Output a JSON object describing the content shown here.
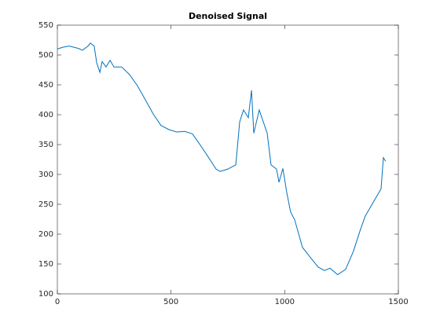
{
  "chart_data": {
    "type": "line",
    "title": "Denoised Signal",
    "x": [
      0,
      24,
      52,
      93,
      110,
      135,
      145,
      162,
      173,
      187,
      197,
      214,
      232,
      249,
      283,
      318,
      353,
      387,
      422,
      456,
      491,
      525,
      560,
      594,
      629,
      664,
      698,
      716,
      750,
      785,
      802,
      819,
      840,
      854,
      864,
      888,
      923,
      940,
      964,
      975,
      992,
      1009,
      1026,
      1044,
      1078,
      1113,
      1147,
      1175,
      1199,
      1233,
      1268,
      1302,
      1330,
      1354,
      1389,
      1424,
      1434,
      1444
    ],
    "series": [
      {
        "name": "Denoised Signal",
        "color": "#0072bd",
        "values": [
          510,
          513,
          515,
          511,
          508,
          515,
          520,
          515,
          487,
          471,
          489,
          480,
          491,
          480,
          480,
          467,
          448,
          425,
          401,
          382,
          375,
          371,
          372,
          368,
          349,
          329,
          309,
          305,
          309,
          316,
          388,
          408,
          395,
          441,
          369,
          408,
          369,
          316,
          309,
          287,
          310,
          270,
          237,
          224,
          178,
          161,
          145,
          139,
          143,
          132,
          141,
          171,
          204,
          230,
          253,
          276,
          328,
          322
        ]
      }
    ],
    "xlim": [
      0,
      1500
    ],
    "ylim": [
      100,
      550
    ],
    "xticks": [
      0,
      500,
      1000,
      1500
    ],
    "yticks": [
      100,
      150,
      200,
      250,
      300,
      350,
      400,
      450,
      500,
      550
    ]
  }
}
